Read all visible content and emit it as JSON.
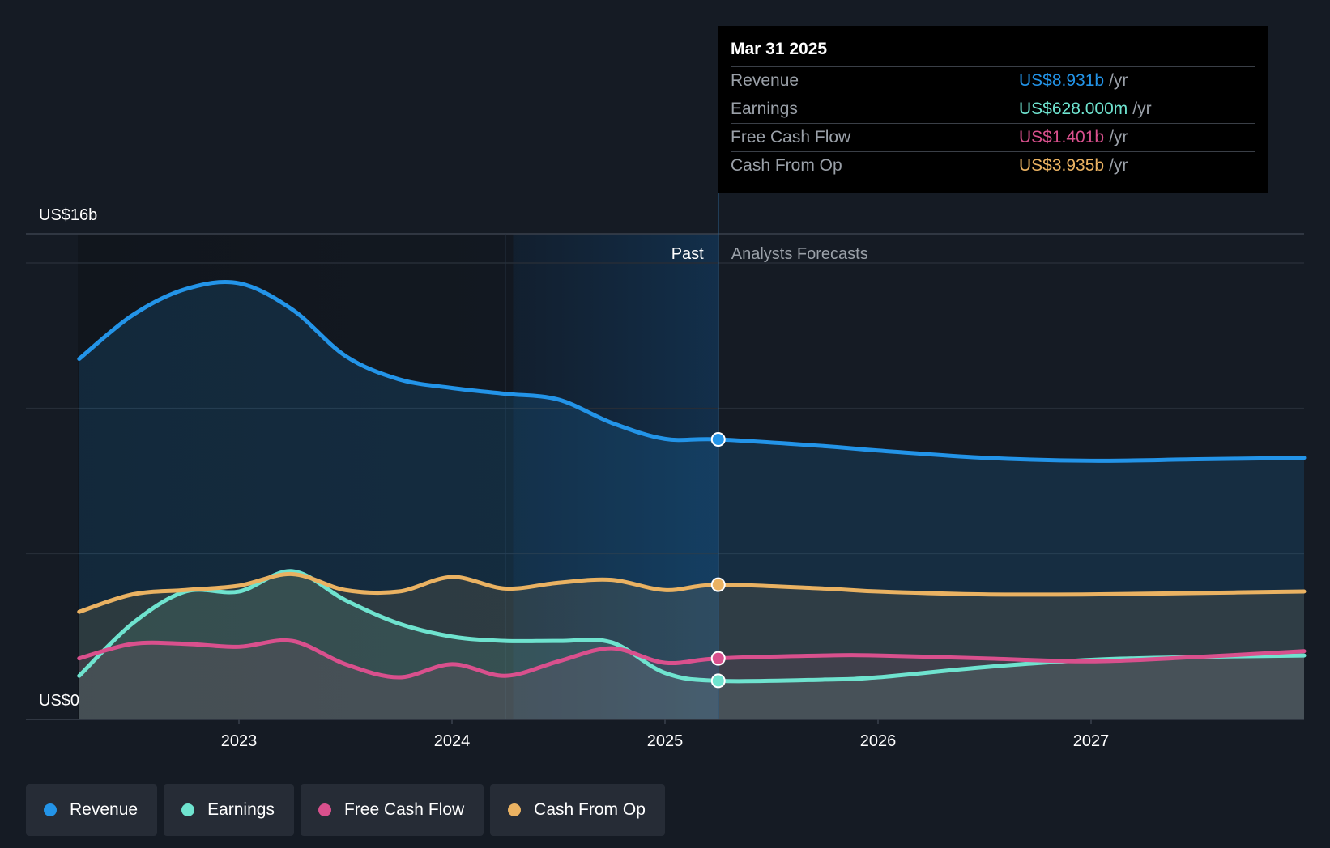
{
  "chart_data": {
    "type": "line",
    "title": "",
    "xlabel": "",
    "ylabel": "",
    "y_axis_labels": {
      "top": "US$16b",
      "bottom": "US$0"
    },
    "ylim": [
      0,
      16
    ],
    "x_ticks": [
      "2023",
      "2024",
      "2025",
      "2026",
      "2027"
    ],
    "region_labels": {
      "past": "Past",
      "forecast": "Analysts Forecasts"
    },
    "divider_x": 2025.25,
    "series": [
      {
        "name": "Revenue",
        "color": "#2394e8",
        "points": [
          [
            2022.25,
            11.7
          ],
          [
            2022.5,
            13.2
          ],
          [
            2022.75,
            14.1
          ],
          [
            2023.0,
            14.3
          ],
          [
            2023.25,
            13.4
          ],
          [
            2023.5,
            11.8
          ],
          [
            2023.75,
            11.0
          ],
          [
            2024.0,
            10.7
          ],
          [
            2024.25,
            10.5
          ],
          [
            2024.5,
            10.3
          ],
          [
            2024.75,
            9.5
          ],
          [
            2025.0,
            8.95
          ],
          [
            2025.25,
            8.931
          ],
          [
            2025.75,
            8.7
          ],
          [
            2026.0,
            8.55
          ],
          [
            2026.5,
            8.3
          ],
          [
            2027.0,
            8.2
          ],
          [
            2027.5,
            8.25
          ],
          [
            2028.0,
            8.3
          ]
        ]
      },
      {
        "name": "Earnings",
        "color": "#6fe3cf",
        "points": [
          [
            2022.25,
            0.8
          ],
          [
            2022.5,
            2.6
          ],
          [
            2022.75,
            3.7
          ],
          [
            2023.0,
            3.7
          ],
          [
            2023.25,
            4.4
          ],
          [
            2023.5,
            3.4
          ],
          [
            2023.75,
            2.6
          ],
          [
            2024.0,
            2.15
          ],
          [
            2024.25,
            2.0
          ],
          [
            2024.5,
            2.0
          ],
          [
            2024.75,
            1.95
          ],
          [
            2025.0,
            0.9
          ],
          [
            2025.25,
            0.628
          ],
          [
            2025.75,
            0.67
          ],
          [
            2026.0,
            0.75
          ],
          [
            2026.5,
            1.1
          ],
          [
            2027.0,
            1.35
          ],
          [
            2027.5,
            1.45
          ],
          [
            2028.0,
            1.5
          ]
        ]
      },
      {
        "name": "Free Cash Flow",
        "color": "#d9508d",
        "points": [
          [
            2022.25,
            1.4
          ],
          [
            2022.5,
            1.9
          ],
          [
            2022.75,
            1.9
          ],
          [
            2023.0,
            1.8
          ],
          [
            2023.25,
            2.0
          ],
          [
            2023.5,
            1.2
          ],
          [
            2023.75,
            0.75
          ],
          [
            2024.0,
            1.2
          ],
          [
            2024.25,
            0.8
          ],
          [
            2024.5,
            1.3
          ],
          [
            2024.75,
            1.75
          ],
          [
            2025.0,
            1.25
          ],
          [
            2025.25,
            1.401
          ],
          [
            2025.75,
            1.5
          ],
          [
            2026.0,
            1.5
          ],
          [
            2026.5,
            1.4
          ],
          [
            2027.0,
            1.3
          ],
          [
            2027.5,
            1.45
          ],
          [
            2028.0,
            1.65
          ]
        ]
      },
      {
        "name": "Cash From Op",
        "color": "#eab262",
        "points": [
          [
            2022.25,
            3.0
          ],
          [
            2022.5,
            3.6
          ],
          [
            2022.75,
            3.75
          ],
          [
            2023.0,
            3.9
          ],
          [
            2023.25,
            4.3
          ],
          [
            2023.5,
            3.75
          ],
          [
            2023.75,
            3.7
          ],
          [
            2024.0,
            4.2
          ],
          [
            2024.25,
            3.8
          ],
          [
            2024.5,
            4.0
          ],
          [
            2024.75,
            4.1
          ],
          [
            2025.0,
            3.75
          ],
          [
            2025.25,
            3.935
          ],
          [
            2025.75,
            3.8
          ],
          [
            2026.0,
            3.7
          ],
          [
            2026.5,
            3.6
          ],
          [
            2027.0,
            3.6
          ],
          [
            2027.5,
            3.65
          ],
          [
            2028.0,
            3.7
          ]
        ]
      }
    ]
  },
  "tooltip": {
    "date": "Mar 31 2025",
    "rows": [
      {
        "label": "Revenue",
        "value": "US$8.931b",
        "unit": "/yr",
        "color": "#2394e8"
      },
      {
        "label": "Earnings",
        "value": "US$628.000m",
        "unit": "/yr",
        "color": "#6fe3cf"
      },
      {
        "label": "Free Cash Flow",
        "value": "US$1.401b",
        "unit": "/yr",
        "color": "#d9508d"
      },
      {
        "label": "Cash From Op",
        "value": "US$3.935b",
        "unit": "/yr",
        "color": "#eab262"
      }
    ]
  },
  "legend": [
    {
      "label": "Revenue",
      "color": "#2394e8"
    },
    {
      "label": "Earnings",
      "color": "#6fe3cf"
    },
    {
      "label": "Free Cash Flow",
      "color": "#d9508d"
    },
    {
      "label": "Cash From Op",
      "color": "#eab262"
    }
  ]
}
